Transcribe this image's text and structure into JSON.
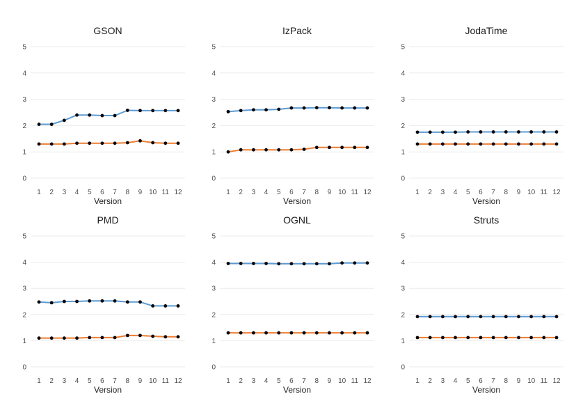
{
  "colors": {
    "series_a": "#5b9bd5",
    "series_b": "#ed7d31",
    "points": "#000000",
    "grid": "#ebebeb"
  },
  "chart_data": [
    {
      "type": "line",
      "title": "GSON",
      "xlabel": "Version",
      "ylabel": "",
      "x": [
        1,
        2,
        3,
        4,
        5,
        6,
        7,
        8,
        9,
        10,
        11,
        12
      ],
      "ylim": [
        0,
        5
      ],
      "yticks": [
        0,
        1,
        2,
        3,
        4,
        5
      ],
      "grid": true,
      "series": [
        {
          "color": "#5b9bd5",
          "values": [
            2.05,
            2.05,
            2.2,
            2.4,
            2.4,
            2.38,
            2.38,
            2.58,
            2.57,
            2.57,
            2.57,
            2.57
          ]
        },
        {
          "color": "#ed7d31",
          "values": [
            1.3,
            1.3,
            1.3,
            1.33,
            1.33,
            1.33,
            1.33,
            1.35,
            1.42,
            1.35,
            1.33,
            1.33
          ]
        }
      ]
    },
    {
      "type": "line",
      "title": "IzPack",
      "xlabel": "Version",
      "ylabel": "",
      "x": [
        1,
        2,
        3,
        4,
        5,
        6,
        7,
        8,
        9,
        10,
        11,
        12
      ],
      "ylim": [
        0,
        5
      ],
      "yticks": [
        0,
        1,
        2,
        3,
        4,
        5
      ],
      "grid": true,
      "series": [
        {
          "color": "#5b9bd5",
          "values": [
            2.53,
            2.57,
            2.6,
            2.6,
            2.62,
            2.67,
            2.67,
            2.68,
            2.68,
            2.67,
            2.67,
            2.67
          ]
        },
        {
          "color": "#ed7d31",
          "values": [
            1.0,
            1.08,
            1.08,
            1.08,
            1.08,
            1.08,
            1.1,
            1.17,
            1.17,
            1.17,
            1.17,
            1.17
          ]
        }
      ]
    },
    {
      "type": "line",
      "title": "JodaTime",
      "xlabel": "Version",
      "ylabel": "",
      "x": [
        1,
        2,
        3,
        4,
        5,
        6,
        7,
        8,
        9,
        10,
        11,
        12
      ],
      "ylim": [
        0,
        5
      ],
      "yticks": [
        0,
        1,
        2,
        3,
        4,
        5
      ],
      "grid": true,
      "series": [
        {
          "color": "#5b9bd5",
          "values": [
            1.75,
            1.75,
            1.75,
            1.75,
            1.76,
            1.76,
            1.76,
            1.76,
            1.76,
            1.76,
            1.76,
            1.76
          ]
        },
        {
          "color": "#ed7d31",
          "values": [
            1.3,
            1.3,
            1.3,
            1.3,
            1.3,
            1.3,
            1.3,
            1.3,
            1.3,
            1.3,
            1.3,
            1.3
          ]
        }
      ]
    },
    {
      "type": "line",
      "title": "PMD",
      "xlabel": "Version",
      "ylabel": "",
      "x": [
        1,
        2,
        3,
        4,
        5,
        6,
        7,
        8,
        9,
        10,
        11,
        12
      ],
      "ylim": [
        0,
        5
      ],
      "yticks": [
        0,
        1,
        2,
        3,
        4,
        5
      ],
      "grid": true,
      "series": [
        {
          "color": "#5b9bd5",
          "values": [
            2.48,
            2.45,
            2.5,
            2.5,
            2.52,
            2.52,
            2.52,
            2.48,
            2.48,
            2.33,
            2.33,
            2.33
          ]
        },
        {
          "color": "#ed7d31",
          "values": [
            1.1,
            1.1,
            1.1,
            1.1,
            1.12,
            1.12,
            1.12,
            1.2,
            1.2,
            1.17,
            1.15,
            1.15
          ]
        }
      ]
    },
    {
      "type": "line",
      "title": "OGNL",
      "xlabel": "Version",
      "ylabel": "",
      "x": [
        1,
        2,
        3,
        4,
        5,
        6,
        7,
        8,
        9,
        10,
        11,
        12
      ],
      "ylim": [
        0,
        5
      ],
      "yticks": [
        0,
        1,
        2,
        3,
        4,
        5
      ],
      "grid": true,
      "series": [
        {
          "color": "#5b9bd5",
          "values": [
            3.95,
            3.95,
            3.95,
            3.95,
            3.94,
            3.94,
            3.94,
            3.94,
            3.94,
            3.97,
            3.97,
            3.97
          ]
        },
        {
          "color": "#ed7d31",
          "values": [
            1.3,
            1.3,
            1.3,
            1.3,
            1.3,
            1.3,
            1.3,
            1.3,
            1.3,
            1.3,
            1.3,
            1.3
          ]
        }
      ]
    },
    {
      "type": "line",
      "title": "Struts",
      "xlabel": "Version",
      "ylabel": "",
      "x": [
        1,
        2,
        3,
        4,
        5,
        6,
        7,
        8,
        9,
        10,
        11,
        12
      ],
      "ylim": [
        0,
        5
      ],
      "yticks": [
        0,
        1,
        2,
        3,
        4,
        5
      ],
      "grid": true,
      "series": [
        {
          "color": "#5b9bd5",
          "values": [
            1.92,
            1.92,
            1.92,
            1.92,
            1.92,
            1.92,
            1.92,
            1.92,
            1.92,
            1.92,
            1.92,
            1.92
          ]
        },
        {
          "color": "#ed7d31",
          "values": [
            1.12,
            1.12,
            1.12,
            1.12,
            1.12,
            1.12,
            1.12,
            1.12,
            1.12,
            1.12,
            1.12,
            1.12
          ]
        }
      ]
    }
  ]
}
